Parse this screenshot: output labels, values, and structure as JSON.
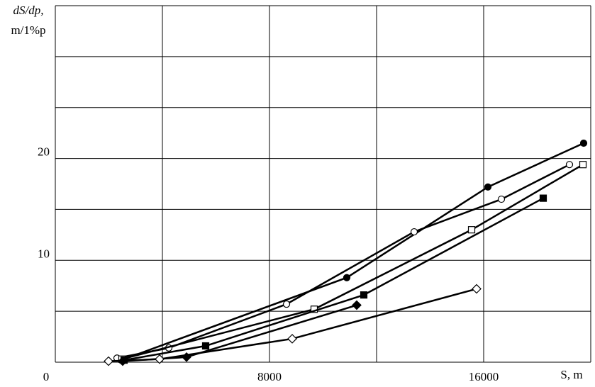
{
  "chart_data": {
    "type": "line",
    "y_label_line1": "dS/dp,",
    "y_label_line2": "m/1%p",
    "x_label": "S, m",
    "xlim": [
      0,
      20000
    ],
    "ylim": [
      0,
      35
    ],
    "xticks": [
      0,
      8000,
      16000
    ],
    "yticks": [
      10,
      20
    ],
    "xgrid": [
      0,
      4000,
      8000,
      12000,
      16000,
      20000
    ],
    "ygrid": [
      0,
      5,
      10,
      15,
      20,
      25,
      30,
      35
    ],
    "series": [
      {
        "marker": "filled-circle",
        "color": "#000000",
        "x": [
          2464,
          10887,
          16159,
          19735
        ],
        "values": [
          0.2,
          8.3,
          17.2,
          21.5
        ]
      },
      {
        "marker": "open-circle",
        "color": "#000000",
        "x": [
          2305,
          4238,
          8636,
          13404,
          16662,
          19205
        ],
        "values": [
          0.4,
          1.4,
          5.7,
          12.8,
          16.0,
          19.4
        ]
      },
      {
        "marker": "open-square",
        "color": "#000000",
        "x": [
          2490,
          9669,
          15550,
          19709
        ],
        "values": [
          0.3,
          5.2,
          13.0,
          19.4
        ]
      },
      {
        "marker": "filled-square",
        "color": "#000000",
        "x": [
          2570,
          5616,
          11523,
          18225
        ],
        "values": [
          0.2,
          1.6,
          6.6,
          16.1
        ]
      },
      {
        "marker": "filled-diamond",
        "color": "#000000",
        "x": [
          2517,
          4901,
          11258
        ],
        "values": [
          0.1,
          0.5,
          5.6
        ]
      },
      {
        "marker": "open-diamond",
        "color": "#000000",
        "x": [
          1987,
          3894,
          8848,
          15735
        ],
        "values": [
          0.1,
          0.3,
          2.3,
          7.2
        ]
      }
    ]
  }
}
